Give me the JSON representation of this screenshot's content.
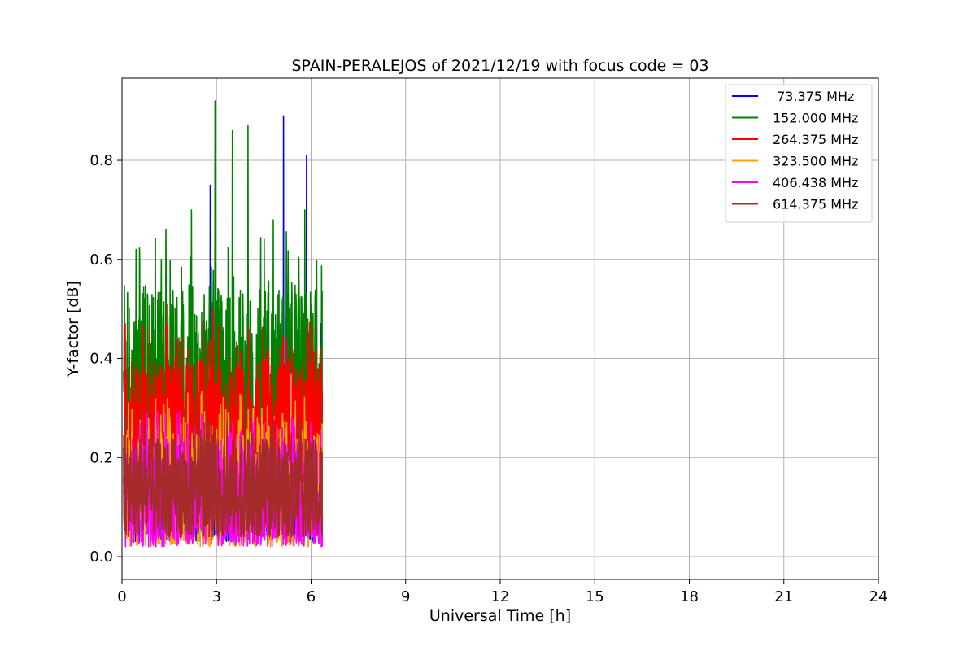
{
  "chart_data": {
    "type": "line",
    "title": "SPAIN-PERALEJOS of 2021/12/19 with focus code = 03",
    "xlabel": "Universal Time [h]",
    "ylabel": "Y-factor [dB]",
    "xlim": [
      0,
      24
    ],
    "ylim": [
      -0.046,
      0.966
    ],
    "xticks": [
      0,
      3,
      6,
      9,
      12,
      15,
      18,
      21,
      24
    ],
    "yticks": [
      0.0,
      0.2,
      0.4,
      0.6,
      0.8
    ],
    "ytick_labels": [
      "0.0",
      "0.2",
      "0.4",
      "0.6",
      "0.8"
    ],
    "grid": true,
    "legend_position": "top-right",
    "data_range_x": [
      0.05,
      6.35
    ],
    "series": [
      {
        "name": " 73.375 MHz",
        "color": "#0000ff",
        "typical_range": [
          0.03,
          0.25
        ],
        "peaks": [
          {
            "x": 2.8,
            "y": 0.75
          },
          {
            "x": 5.12,
            "y": 0.89
          },
          {
            "x": 5.85,
            "y": 0.81
          },
          {
            "x": 6.3,
            "y": 0.47
          }
        ]
      },
      {
        "name": "152.000 MHz",
        "color": "#008000",
        "typical_range": [
          0.1,
          0.55
        ],
        "peaks": [
          {
            "x": 0.45,
            "y": 0.62
          },
          {
            "x": 1.25,
            "y": 0.6
          },
          {
            "x": 2.2,
            "y": 0.7
          },
          {
            "x": 2.95,
            "y": 0.92
          },
          {
            "x": 3.5,
            "y": 0.86
          },
          {
            "x": 4.0,
            "y": 0.87
          },
          {
            "x": 4.8,
            "y": 0.68
          },
          {
            "x": 5.8,
            "y": 0.7
          }
        ]
      },
      {
        "name": "264.375 MHz",
        "color": "#ff0000",
        "typical_range": [
          0.1,
          0.4
        ],
        "peaks": [
          {
            "x": 0.1,
            "y": 0.47
          },
          {
            "x": 1.45,
            "y": 0.51
          },
          {
            "x": 2.9,
            "y": 0.5
          }
        ]
      },
      {
        "name": "323.500 MHz",
        "color": "#ffa500",
        "typical_range": [
          0.02,
          0.27
        ],
        "peaks": [
          {
            "x": 1.5,
            "y": 0.3
          },
          {
            "x": 5.1,
            "y": 0.29
          }
        ]
      },
      {
        "name": "406.438 MHz",
        "color": "#ff00ff",
        "typical_range": [
          0.02,
          0.24
        ],
        "peaks": [
          {
            "x": 3.5,
            "y": 0.27
          }
        ]
      },
      {
        "name": "614.375 MHz",
        "color": "#a52a2a",
        "typical_range": [
          0.04,
          0.24
        ],
        "peaks": []
      }
    ]
  }
}
